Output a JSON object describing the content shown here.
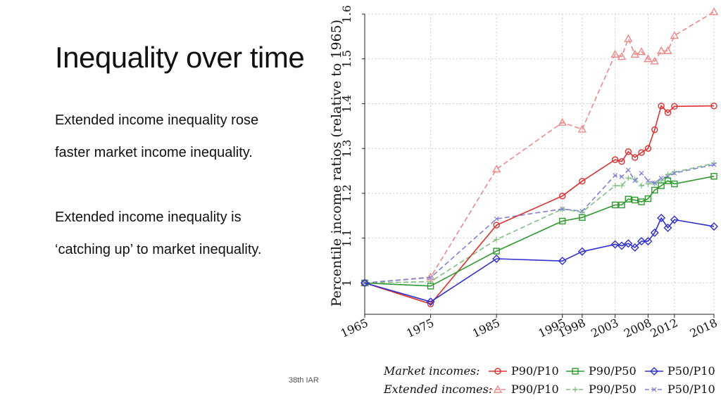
{
  "slide": {
    "title": "Inequality over time",
    "bullets": [
      "Extended income inequality rose",
      "faster market income inequality.",
      "Extended income inequality is",
      "‘catching up’ to market inequality."
    ],
    "footer": "38th IAR"
  },
  "chart_data": {
    "type": "line",
    "title": "",
    "xlabel": "",
    "ylabel": "Percentile income ratios (relative to 1965)",
    "x_ticks": [
      1965,
      1975,
      1985,
      1995,
      1998,
      2003,
      2008,
      2012,
      2018
    ],
    "y_ticks": [
      "1",
      "1.1",
      "1.2",
      "1.3",
      "1.4",
      "1.5",
      "1.6"
    ],
    "xlim": [
      1965,
      2018
    ],
    "ylim": [
      0.93,
      1.6
    ],
    "grid": true,
    "legend": {
      "placement": "bottom",
      "groups": [
        {
          "label": "Market incomes:",
          "entries": [
            "P90/P10",
            "P90/P50",
            "P50/P10"
          ]
        },
        {
          "label": "Extended incomes:",
          "entries": [
            "P90/P10",
            "P90/P50",
            "P50/P10"
          ]
        }
      ]
    },
    "series": [
      {
        "group": "Market incomes",
        "name": "P90/P10",
        "color": "#e03030",
        "dashed": false,
        "marker": "circle",
        "x": [
          1965,
          1975,
          1985,
          1995,
          1998,
          2003,
          2004,
          2005,
          2006,
          2007,
          2008,
          2009,
          2010,
          2011,
          2012,
          2018
        ],
        "y": [
          1.0,
          0.953,
          1.129,
          1.194,
          1.227,
          1.275,
          1.271,
          1.293,
          1.28,
          1.291,
          1.3,
          1.342,
          1.395,
          1.38,
          1.394,
          1.395
        ]
      },
      {
        "group": "Market incomes",
        "name": "P90/P50",
        "color": "#2e9a2e",
        "dashed": false,
        "marker": "square",
        "x": [
          1965,
          1975,
          1985,
          1995,
          1998,
          2003,
          2004,
          2005,
          2006,
          2007,
          2008,
          2009,
          2010,
          2011,
          2012,
          2018
        ],
        "y": [
          1.0,
          0.993,
          1.071,
          1.138,
          1.146,
          1.174,
          1.174,
          1.187,
          1.185,
          1.181,
          1.188,
          1.207,
          1.217,
          1.228,
          1.221,
          1.238
        ]
      },
      {
        "group": "Market incomes",
        "name": "P50/P10",
        "color": "#3030d0",
        "dashed": false,
        "marker": "diamond",
        "x": [
          1965,
          1975,
          1985,
          1995,
          1998,
          2003,
          2004,
          2005,
          2006,
          2007,
          2008,
          2009,
          2010,
          2011,
          2012,
          2018
        ],
        "y": [
          1.0,
          0.958,
          1.054,
          1.049,
          1.07,
          1.086,
          1.083,
          1.088,
          1.079,
          1.093,
          1.093,
          1.112,
          1.145,
          1.123,
          1.141,
          1.126
        ]
      },
      {
        "group": "Extended incomes",
        "name": "P90/P10",
        "color": "#f08a8a",
        "dashed": true,
        "marker": "triangle",
        "x": [
          1965,
          1975,
          1985,
          1995,
          1998,
          2003,
          2004,
          2005,
          2006,
          2007,
          2008,
          2009,
          2010,
          2011,
          2012,
          2018
        ],
        "y": [
          1.0,
          1.013,
          1.254,
          1.358,
          1.343,
          1.51,
          1.505,
          1.545,
          1.51,
          1.516,
          1.5,
          1.495,
          1.518,
          1.518,
          1.552,
          1.605
        ]
      },
      {
        "group": "Extended incomes",
        "name": "P90/P50",
        "color": "#80c080",
        "dashed": true,
        "marker": "plus",
        "x": [
          1965,
          1975,
          1985,
          1995,
          1998,
          2003,
          2004,
          2005,
          2006,
          2007,
          2008,
          2009,
          2010,
          2011,
          2012,
          2018
        ],
        "y": [
          1.0,
          1.003,
          1.097,
          1.165,
          1.158,
          1.217,
          1.217,
          1.234,
          1.232,
          1.217,
          1.221,
          1.222,
          1.228,
          1.242,
          1.247,
          1.267
        ]
      },
      {
        "group": "Extended incomes",
        "name": "P50/P10",
        "color": "#8080d8",
        "dashed": true,
        "marker": "x",
        "x": [
          1965,
          1975,
          1985,
          1995,
          1998,
          2003,
          2004,
          2005,
          2006,
          2007,
          2008,
          2009,
          2010,
          2011,
          2012,
          2018
        ],
        "y": [
          1.0,
          1.012,
          1.143,
          1.165,
          1.16,
          1.24,
          1.237,
          1.252,
          1.228,
          1.245,
          1.228,
          1.223,
          1.234,
          1.237,
          1.245,
          1.264
        ]
      }
    ]
  }
}
